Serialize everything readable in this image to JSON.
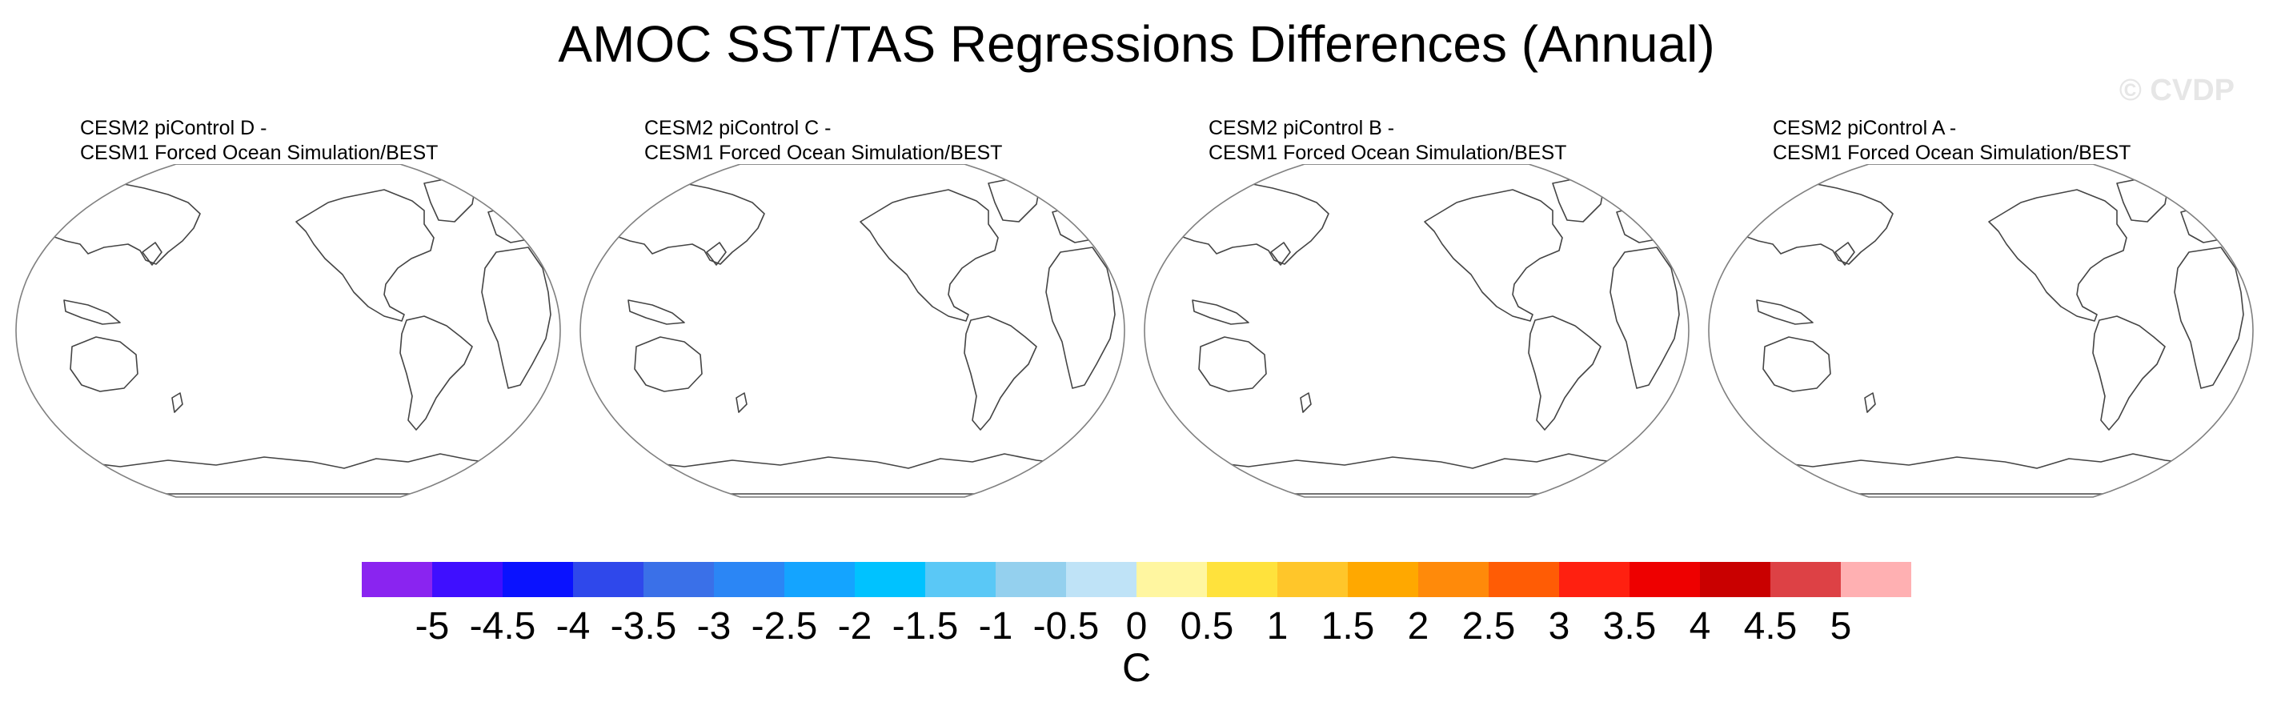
{
  "title": "AMOC SST/TAS Regressions Differences (Annual)",
  "credit": "© CVDP",
  "panels": [
    {
      "line1": "CESM2 piControl D -",
      "line2": "CESM1 Forced Ocean Simulation/BEST"
    },
    {
      "line1": "CESM2 piControl C -",
      "line2": "CESM1 Forced Ocean Simulation/BEST"
    },
    {
      "line1": "CESM2 piControl B -",
      "line2": "CESM1 Forced Ocean Simulation/BEST"
    },
    {
      "line1": "CESM2 piControl A -",
      "line2": "CESM1 Forced Ocean Simulation/BEST"
    }
  ],
  "chart_data": {
    "type": "heatmap",
    "title": "AMOC SST/TAS Regressions Differences (Annual)",
    "projection": "Robinson, Pacific-centered",
    "fields_shown": "empty (no shaded values displayed)",
    "colorbar": {
      "units": "C",
      "levels": [
        "-5",
        "-4.5",
        "-4",
        "-3.5",
        "-3",
        "-2.5",
        "-2",
        "-1.5",
        "-1",
        "-0.5",
        "0",
        "0.5",
        "1",
        "1.5",
        "2",
        "2.5",
        "3",
        "3.5",
        "4",
        "4.5",
        "5"
      ],
      "colors": [
        "#8a24f0",
        "#3f0fff",
        "#0a12ff",
        "#2f48eb",
        "#3a70e8",
        "#2b86f5",
        "#14a4ff",
        "#00c2ff",
        "#5ac8f6",
        "#94d0ee",
        "#bfe3f7",
        "#fff6a0",
        "#ffe23c",
        "#ffc62a",
        "#ffa800",
        "#ff8a0a",
        "#ff5c05",
        "#ff2010",
        "#ee0000",
        "#c90000",
        "#dd4145",
        "#ffb0b2"
      ]
    }
  }
}
